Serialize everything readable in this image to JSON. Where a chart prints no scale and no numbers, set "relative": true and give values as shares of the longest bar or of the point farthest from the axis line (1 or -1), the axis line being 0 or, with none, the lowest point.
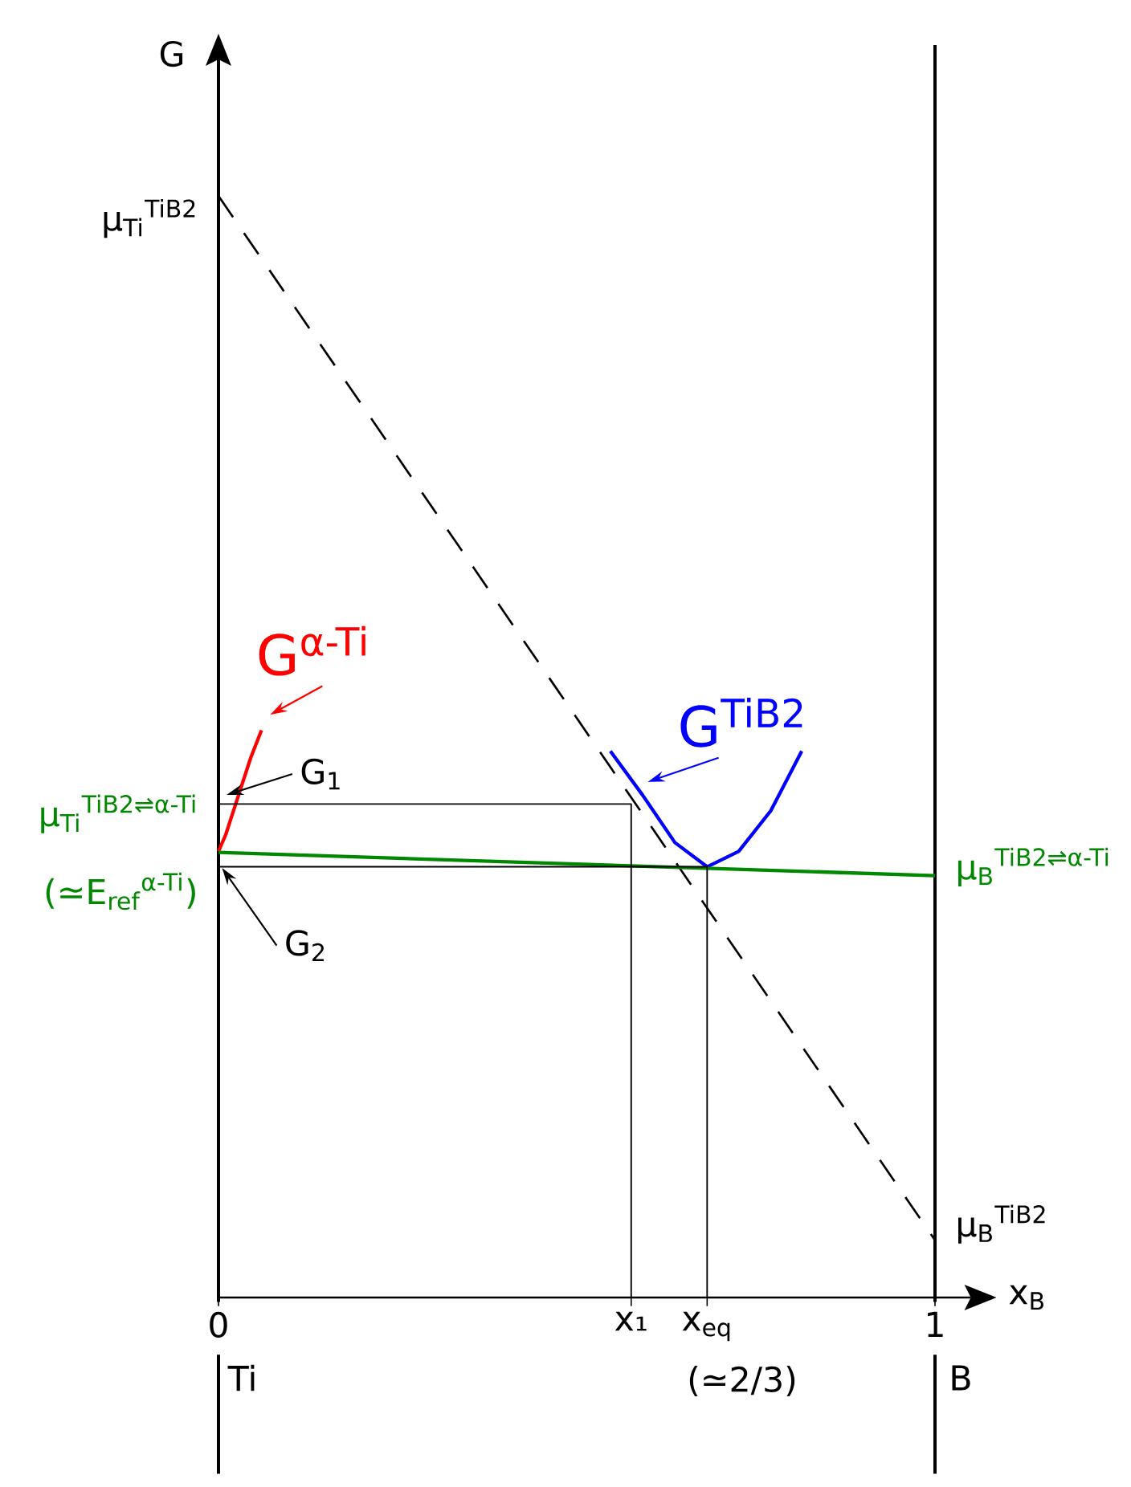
{
  "chart_data": {
    "type": "line",
    "relative": true,
    "marker": "none",
    "xlabel": "x$_{B}$",
    "ylabel": "G",
    "xlim": [
      0,
      1.05
    ],
    "xticks": [
      {
        "value": 0,
        "label": "0"
      },
      {
        "value": 0.576,
        "label": "x₁"
      },
      {
        "value": 0.682,
        "label": "x$_{eq}$"
      },
      {
        "value": 1,
        "label": "1"
      }
    ],
    "series": [
      {
        "color": "#000000",
        "line_style": "dashed",
        "x": [
          0,
          1
        ],
        "values": [
          1.0,
          0.052
        ]
      },
      {
        "name": "G$^{α-Ti}$",
        "color": "#ff0000",
        "line_style": "solid",
        "x": [
          0,
          0.01,
          0.02,
          0.03,
          0.045,
          0.06
        ],
        "values": [
          0.405,
          0.42,
          0.44,
          0.46,
          0.49,
          0.515
        ]
      },
      {
        "name": "G$^{TiB2}$",
        "color": "#0000ff",
        "line_style": "solid",
        "x": [
          0.547,
          0.592,
          0.637,
          0.682,
          0.726,
          0.771,
          0.814
        ],
        "values": [
          0.496,
          0.456,
          0.413,
          0.391,
          0.405,
          0.442,
          0.496
        ]
      },
      {
        "name": "μ$_{B}$$^{TiB2⇌α-Ti}$",
        "color": "#008800",
        "line_style": "solid",
        "x": [
          0,
          1
        ],
        "values": [
          0.404,
          0.383
        ]
      },
      {
        "color": "#000000",
        "line_style": "solid",
        "x": [
          0,
          0.576,
          0.576
        ],
        "values": [
          0.448,
          0.448,
          0
        ]
      },
      {
        "color": "#000000",
        "line_style": "solid",
        "x": [
          0,
          0.682,
          0.682
        ],
        "values": [
          0.391,
          0.391,
          0
        ]
      }
    ],
    "ref_lines": [
      {
        "axis": "x",
        "value": 1,
        "color": "#000000"
      }
    ],
    "annotations": [
      {
        "text": "μ$_{Ti}$$^{TiB2}$",
        "x": 0,
        "y": 1.0
      },
      "G$_{1}$",
      {
        "text": "G$_{2}$",
        "x": 0.005,
        "y": 0.39
      },
      {
        "text": "μ$_{Ti}$$^{TiB2⇌α-Ti}$",
        "x": 0,
        "y": 0.404
      },
      "(≃E$_{ref}$$^{α-Ti}$)",
      {
        "text": "μ$_{B}$$^{TiB2}$",
        "x": 1,
        "y": 0.052
      },
      "Ti",
      "B",
      "(≃2/3)"
    ]
  }
}
